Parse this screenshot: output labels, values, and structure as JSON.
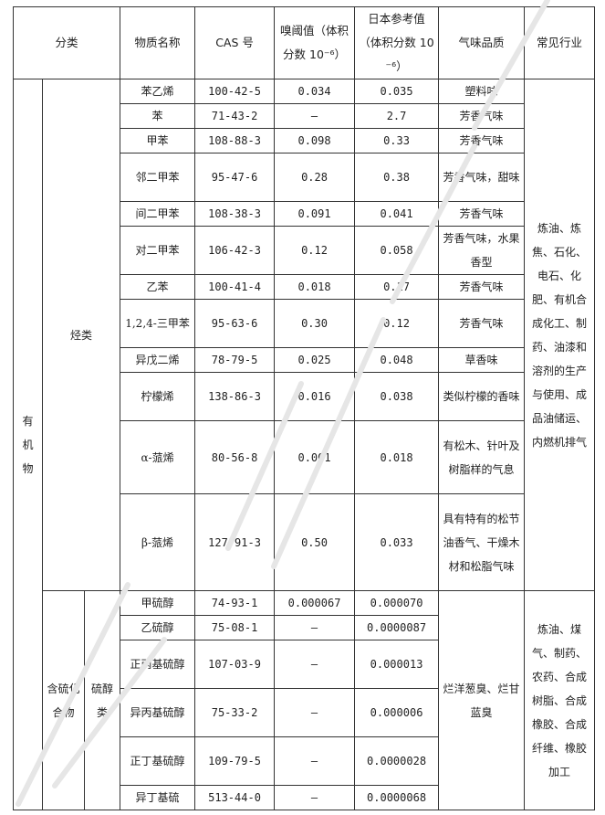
{
  "header": {
    "category": "分类",
    "name": "物质名称",
    "cas": "CAS 号",
    "threshold": "嗅阈值（体积分数 10⁻⁶）",
    "japan_ref": "日本参考值（体积分数 10⁻⁶）",
    "odor": "气味品质",
    "industry": "常见行业"
  },
  "organic": {
    "label": "有机物",
    "hydrocarbons": {
      "label": "烃类",
      "industry": "炼油、炼焦、石化、电石、化肥、有机合成化工、制药、油漆和溶剂的生产与使用、成品油储运、内燃机排气",
      "rows": [
        {
          "name": "苯乙烯",
          "cas": "100-42-5",
          "threshold": "0.034",
          "japan_ref": "0.035",
          "odor": "塑料味"
        },
        {
          "name": "苯",
          "cas": "71-43-2",
          "threshold": "—",
          "japan_ref": "2.7",
          "odor": "芳香气味"
        },
        {
          "name": "甲苯",
          "cas": "108-88-3",
          "threshold": "0.098",
          "japan_ref": "0.33",
          "odor": "芳香气味"
        },
        {
          "name": "邻二甲苯",
          "cas": "95-47-6",
          "threshold": "0.28",
          "japan_ref": "0.38",
          "odor": "芳香气味，甜味"
        },
        {
          "name": "间二甲苯",
          "cas": "108-38-3",
          "threshold": "0.091",
          "japan_ref": "0.041",
          "odor": "芳香气味"
        },
        {
          "name": "对二甲苯",
          "cas": "106-42-3",
          "threshold": "0.12",
          "japan_ref": "0.058",
          "odor": "芳香气味，水果香型"
        },
        {
          "name": "乙苯",
          "cas": "100-41-4",
          "threshold": "0.018",
          "japan_ref": "0.17",
          "odor": "芳香气味"
        },
        {
          "name": "1,2,4-三甲苯",
          "cas": "95-63-6",
          "threshold": "0.30",
          "japan_ref": "0.12",
          "odor": "芳香气味"
        },
        {
          "name": "异戊二烯",
          "cas": "78-79-5",
          "threshold": "0.025",
          "japan_ref": "0.048",
          "odor": "草香味"
        },
        {
          "name": "柠檬烯",
          "cas": "138-86-3",
          "threshold": "0.016",
          "japan_ref": "0.038",
          "odor": "类似柠檬的香味"
        },
        {
          "name": "α-蒎烯",
          "cas": "80-56-8",
          "threshold": "0.001",
          "japan_ref": "0.018",
          "odor": "有松木、针叶及树脂样的气息"
        },
        {
          "name": "β-蒎烯",
          "cas": "127-91-3",
          "threshold": "0.50",
          "japan_ref": "0.033",
          "odor": "具有特有的松节油香气、干燥木材和松脂气味"
        }
      ]
    }
  },
  "sulfur": {
    "label": "含硫化合物",
    "sublabel": "硫醇类",
    "odor": "烂洋葱臭、烂甘蓝臭",
    "industry": "炼油、煤气、制药、农药、合成树脂、合成橡胶、合成纤维、橡胶加工",
    "rows": [
      {
        "name": "甲硫醇",
        "cas": "74-93-1",
        "threshold": "0.000067",
        "japan_ref": "0.000070"
      },
      {
        "name": "乙硫醇",
        "cas": "75-08-1",
        "threshold": "—",
        "japan_ref": "0.0000087"
      },
      {
        "name": "正丙基硫醇",
        "cas": "107-03-9",
        "threshold": "—",
        "japan_ref": "0.000013"
      },
      {
        "name": "异丙基硫醇",
        "cas": "75-33-2",
        "threshold": "—",
        "japan_ref": "0.000006"
      },
      {
        "name": "正丁基硫醇",
        "cas": "109-79-5",
        "threshold": "—",
        "japan_ref": "0.0000028"
      },
      {
        "name": "异丁基硫",
        "cas": "513-44-0",
        "threshold": "—",
        "japan_ref": "0.0000068"
      }
    ]
  }
}
